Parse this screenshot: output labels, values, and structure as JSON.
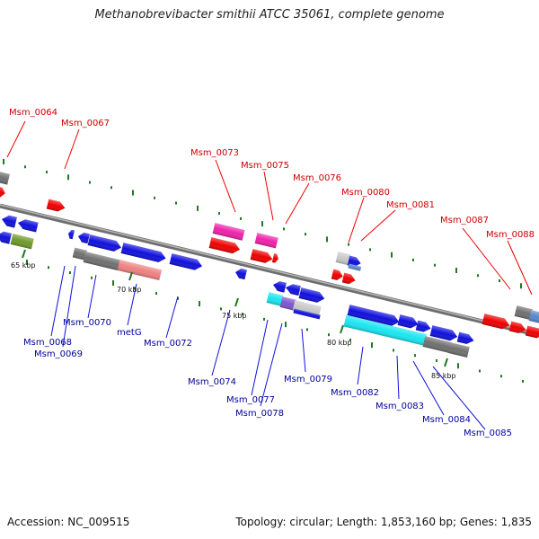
{
  "title": "Methanobrevibacter smithii ATCC 35061, complete genome",
  "footer": {
    "accession": "Accession: NC_009515",
    "topology": "Topology: circular; Length: 1,853,160 bp; Genes: 1,835"
  },
  "colors": {
    "backbone": "#8a8a8a",
    "blue": "#1010dd",
    "red": "#ee0000",
    "magenta": "#ee22aa",
    "grey": "#707070",
    "lightgrey": "#c8c8c8",
    "olive": "#6f9a2a",
    "salmon": "#ef8080",
    "cyan": "#19e6f0",
    "purple": "#7f55d0",
    "steel": "#5588cc",
    "label_red": "#cc0000",
    "label_blue": "#000099",
    "gc_tick": "#227722"
  },
  "ticks": [
    {
      "label": "65 kbp"
    },
    {
      "label": "70 kbp"
    },
    {
      "label": "75 kbp"
    },
    {
      "label": "80 kbp"
    },
    {
      "label": "85 kbp"
    }
  ],
  "labels_top": [
    {
      "text": "Msm_0064"
    },
    {
      "text": "Msm_0067"
    },
    {
      "text": "Msm_0073"
    },
    {
      "text": "Msm_0075"
    },
    {
      "text": "Msm_0076"
    },
    {
      "text": "Msm_0080"
    },
    {
      "text": "Msm_0081"
    },
    {
      "text": "Msm_0087"
    },
    {
      "text": "Msm_0088"
    }
  ],
  "labels_bottom": [
    {
      "text": "Msm_0068"
    },
    {
      "text": "Msm_0069"
    },
    {
      "text": "Msm_0070"
    },
    {
      "text": "metG"
    },
    {
      "text": "Msm_0072"
    },
    {
      "text": "Msm_0074"
    },
    {
      "text": "Msm_0077"
    },
    {
      "text": "Msm_0078"
    },
    {
      "text": "Msm_0079"
    },
    {
      "text": "Msm_0082"
    },
    {
      "text": "Msm_0083"
    },
    {
      "text": "Msm_0084"
    },
    {
      "text": "Msm_0085"
    }
  ]
}
